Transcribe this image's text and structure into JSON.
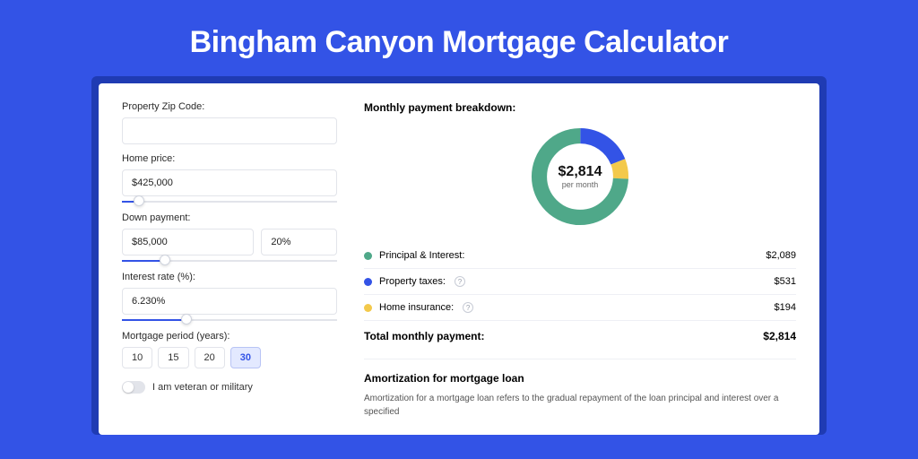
{
  "page": {
    "title": "Bingham Canyon Mortgage Calculator",
    "background_color": "#3353e6",
    "card_shadow_color": "#1f3bb3"
  },
  "form": {
    "zip": {
      "label": "Property Zip Code:",
      "value": ""
    },
    "home_price": {
      "label": "Home price:",
      "value": "$425,000",
      "slider_pct": 8
    },
    "down_payment": {
      "label": "Down payment:",
      "amount": "$85,000",
      "percent": "20%",
      "slider_pct": 20
    },
    "interest_rate": {
      "label": "Interest rate (%):",
      "value": "6.230%",
      "slider_pct": 30
    },
    "period": {
      "label": "Mortgage period (years):",
      "options": [
        "10",
        "15",
        "20",
        "30"
      ],
      "selected": "30"
    },
    "veteran": {
      "label": "I am veteran or military",
      "checked": false
    }
  },
  "breakdown": {
    "title": "Monthly payment breakdown:",
    "center_value": "$2,814",
    "center_sub": "per month",
    "items": [
      {
        "label": "Principal & Interest:",
        "value": "$2,089",
        "color": "#4fa889",
        "has_help": false,
        "pct": 74.2
      },
      {
        "label": "Property taxes:",
        "value": "$531",
        "color": "#3353e6",
        "has_help": true,
        "pct": 18.9
      },
      {
        "label": "Home insurance:",
        "value": "$194",
        "color": "#f3c94b",
        "has_help": true,
        "pct": 6.9
      }
    ],
    "total": {
      "label": "Total monthly payment:",
      "value": "$2,814"
    },
    "donut_bg": "#ffffff",
    "donut_stroke_width": 14
  },
  "amortization": {
    "title": "Amortization for mortgage loan",
    "text": "Amortization for a mortgage loan refers to the gradual repayment of the loan principal and interest over a specified"
  }
}
